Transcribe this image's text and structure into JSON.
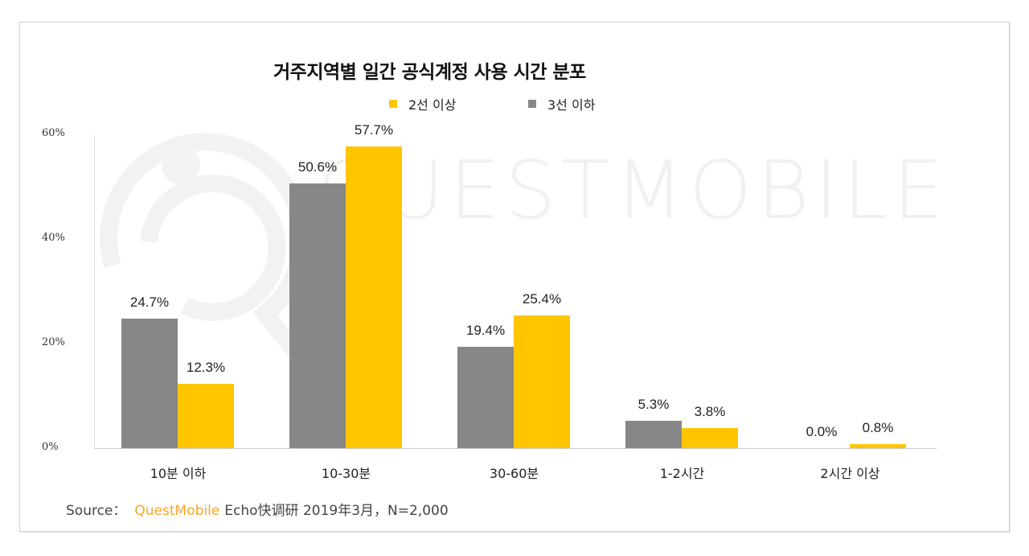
{
  "chart_data": {
    "type": "bar",
    "title": "거주지역별 일간 공식계정 사용 시간 분포",
    "xlabel": "",
    "ylabel": "",
    "ylim": [
      0,
      60
    ],
    "yticks": [
      "0%",
      "20%",
      "40%",
      "60%"
    ],
    "grid": false,
    "legend_position": "top",
    "categories": [
      "10분 이하",
      "10-30분",
      "30-60분",
      "1-2시간",
      "2시간 이상"
    ],
    "series": [
      {
        "name": "3선 이하",
        "color": "#878787",
        "values": [
          24.7,
          50.6,
          19.4,
          5.3,
          0.0
        ],
        "labels": [
          "24.7%",
          "50.6%",
          "19.4%",
          "5.3%",
          "0.0%"
        ]
      },
      {
        "name": "2선 이상",
        "color": "#ffc600",
        "values": [
          12.3,
          57.7,
          25.4,
          3.8,
          0.8
        ],
        "labels": [
          "12.3%",
          "57.7%",
          "25.4%",
          "3.8%",
          "0.8%"
        ]
      }
    ]
  },
  "legend": [
    {
      "name": "2선 이상",
      "color": "#ffc600"
    },
    {
      "name": "3선 이하",
      "color": "#878787"
    }
  ],
  "watermark": "QUESTMOBILE",
  "source": {
    "prefix": "Source：",
    "brand": "QuestMobile",
    "brand_color": "#f5a623",
    "rest": "Echo快调研 2019年3月，N=2,000"
  }
}
